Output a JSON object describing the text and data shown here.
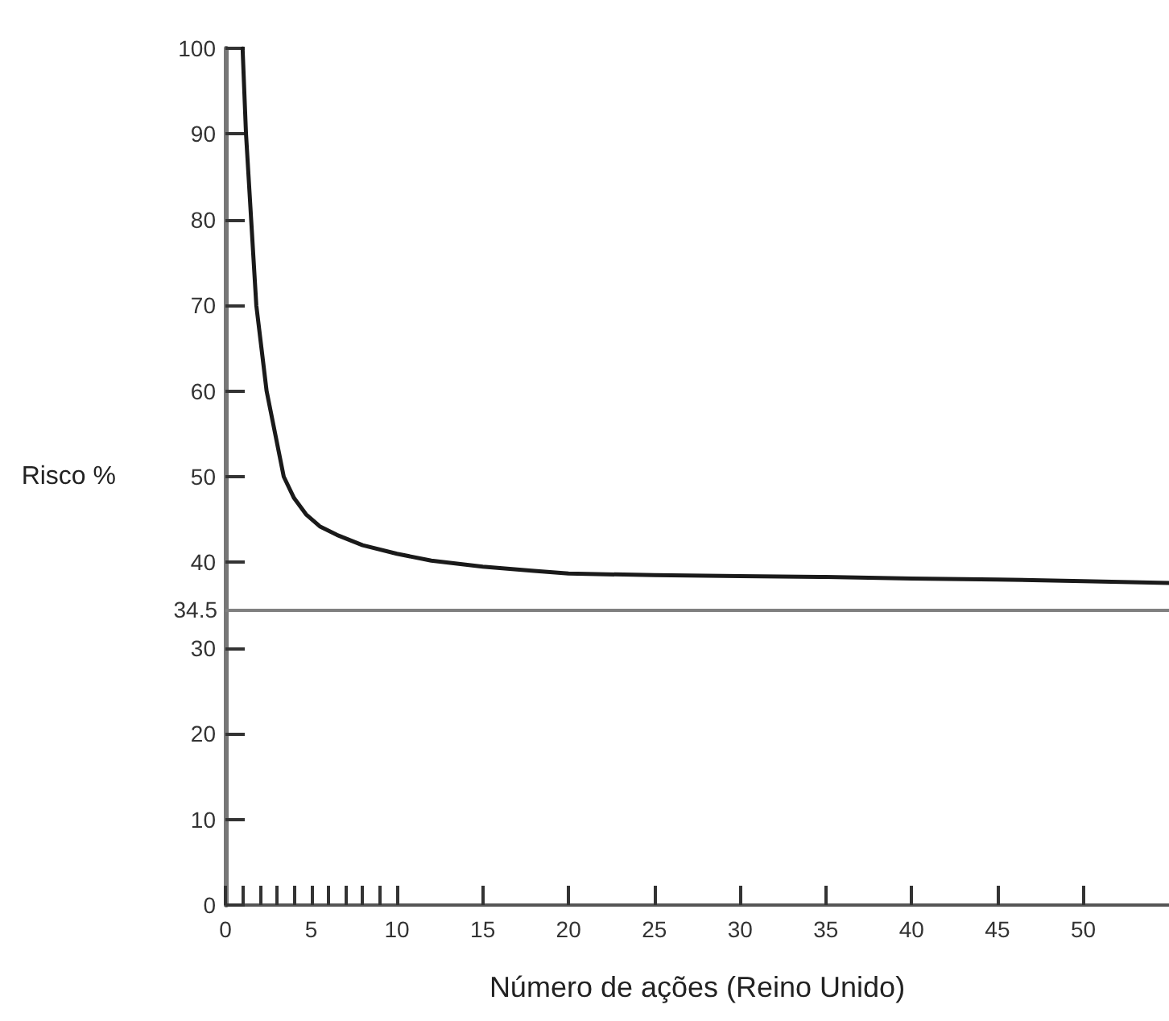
{
  "chart_data": {
    "type": "line",
    "xlabel": "Número de ações (Reino Unido)",
    "ylabel": "Risco %",
    "x": [
      1,
      1.2,
      1.5,
      1.8,
      2.1,
      2.4,
      2.9,
      3.4,
      4,
      4.7,
      5.5,
      6.5,
      8,
      10,
      12,
      15,
      18,
      20,
      25,
      30,
      35,
      40,
      45,
      50,
      55
    ],
    "series": [
      {
        "color": "#1a1a1a",
        "values": [
          100,
          90,
          80,
          70,
          65,
          60,
          55,
          50,
          47.5,
          45.6,
          44.2,
          43.2,
          42,
          41,
          40.2,
          39.5,
          39,
          38.7,
          38.5,
          38.4,
          38.3,
          38.1,
          38,
          37.8,
          37.6
        ]
      }
    ],
    "xlim": [
      0,
      55
    ],
    "xticks": [
      0,
      {
        "value": 1,
        "label": null
      },
      {
        "value": 2,
        "label": null
      },
      {
        "value": 3,
        "label": null
      },
      {
        "value": 4,
        "label": null
      },
      5,
      {
        "value": 6,
        "label": null
      },
      {
        "value": 7,
        "label": null
      },
      {
        "value": 8,
        "label": null
      },
      {
        "value": 9,
        "label": null
      },
      10,
      15,
      20,
      25,
      30,
      35,
      40,
      45,
      50
    ],
    "ylim": [
      0,
      100
    ],
    "yticks": [
      0,
      10,
      20,
      30,
      40,
      50,
      60,
      70,
      80,
      90,
      100
    ],
    "ref_lines": [
      {
        "axis": "y",
        "value": 34.5,
        "label": "34.5",
        "color": "#808080"
      }
    ],
    "grid": false,
    "marker": "none",
    "line_style": "solid"
  }
}
